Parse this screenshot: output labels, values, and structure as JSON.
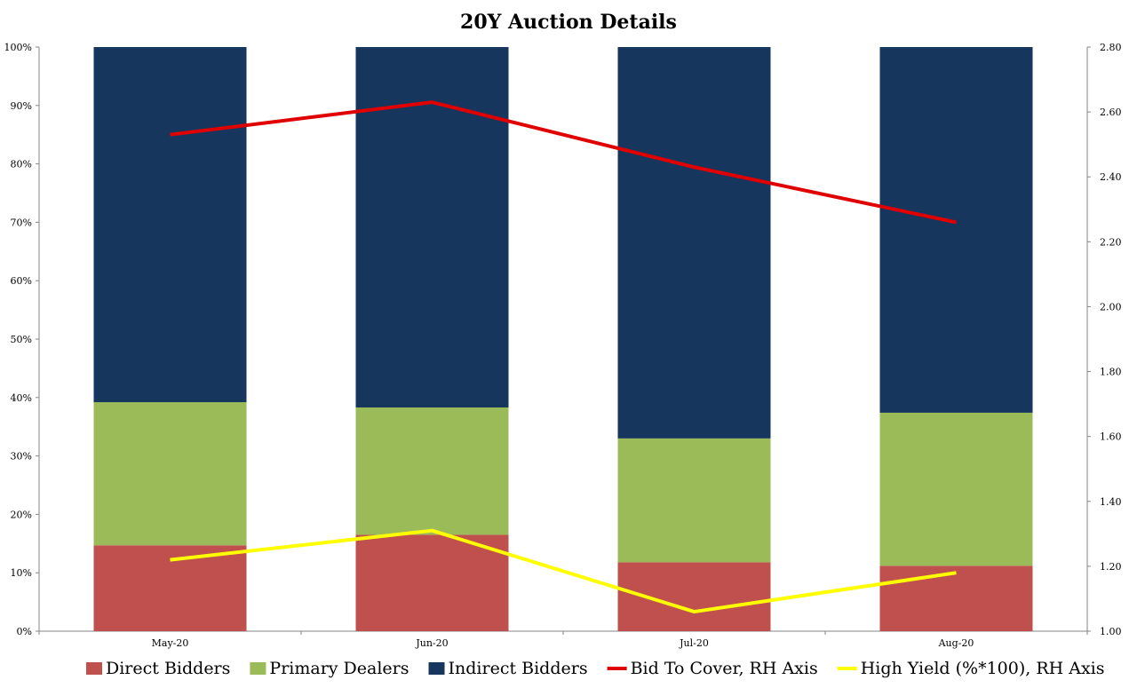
{
  "chart_data": {
    "type": "bar",
    "stacked": true,
    "title": "20Y Auction Details",
    "categories": [
      "May-20",
      "Jun-20",
      "Jul-20",
      "Aug-20"
    ],
    "ylim": [
      0,
      100
    ],
    "y_ticks": [
      "0%",
      "10%",
      "20%",
      "30%",
      "40%",
      "50%",
      "60%",
      "70%",
      "80%",
      "90%",
      "100%"
    ],
    "y2lim": [
      1.0,
      2.8
    ],
    "y2_ticks": [
      "1.00",
      "1.20",
      "1.40",
      "1.60",
      "1.80",
      "2.00",
      "2.20",
      "2.40",
      "2.60",
      "2.80"
    ],
    "grid": false,
    "legend_position": "bottom",
    "series": [
      {
        "name": "Direct Bidders",
        "axis": "left",
        "kind": "bar",
        "color": "#c0504d",
        "values": [
          14.7,
          16.5,
          11.8,
          11.2
        ]
      },
      {
        "name": "Primary Dealers",
        "axis": "left",
        "kind": "bar",
        "color": "#9bbb59",
        "values": [
          24.5,
          21.8,
          21.2,
          26.2
        ]
      },
      {
        "name": "Indirect Bidders",
        "axis": "left",
        "kind": "bar",
        "color": "#17365d",
        "values": [
          60.8,
          61.7,
          67.0,
          62.6
        ]
      },
      {
        "name": "Bid To Cover, RH Axis",
        "axis": "right",
        "kind": "line",
        "color": "#e00000",
        "values": [
          2.53,
          2.63,
          2.43,
          2.26
        ]
      },
      {
        "name": "High Yield (%*100), RH Axis",
        "axis": "right",
        "kind": "line",
        "color": "#ffff00",
        "values": [
          1.22,
          1.31,
          1.06,
          1.18
        ]
      }
    ]
  }
}
